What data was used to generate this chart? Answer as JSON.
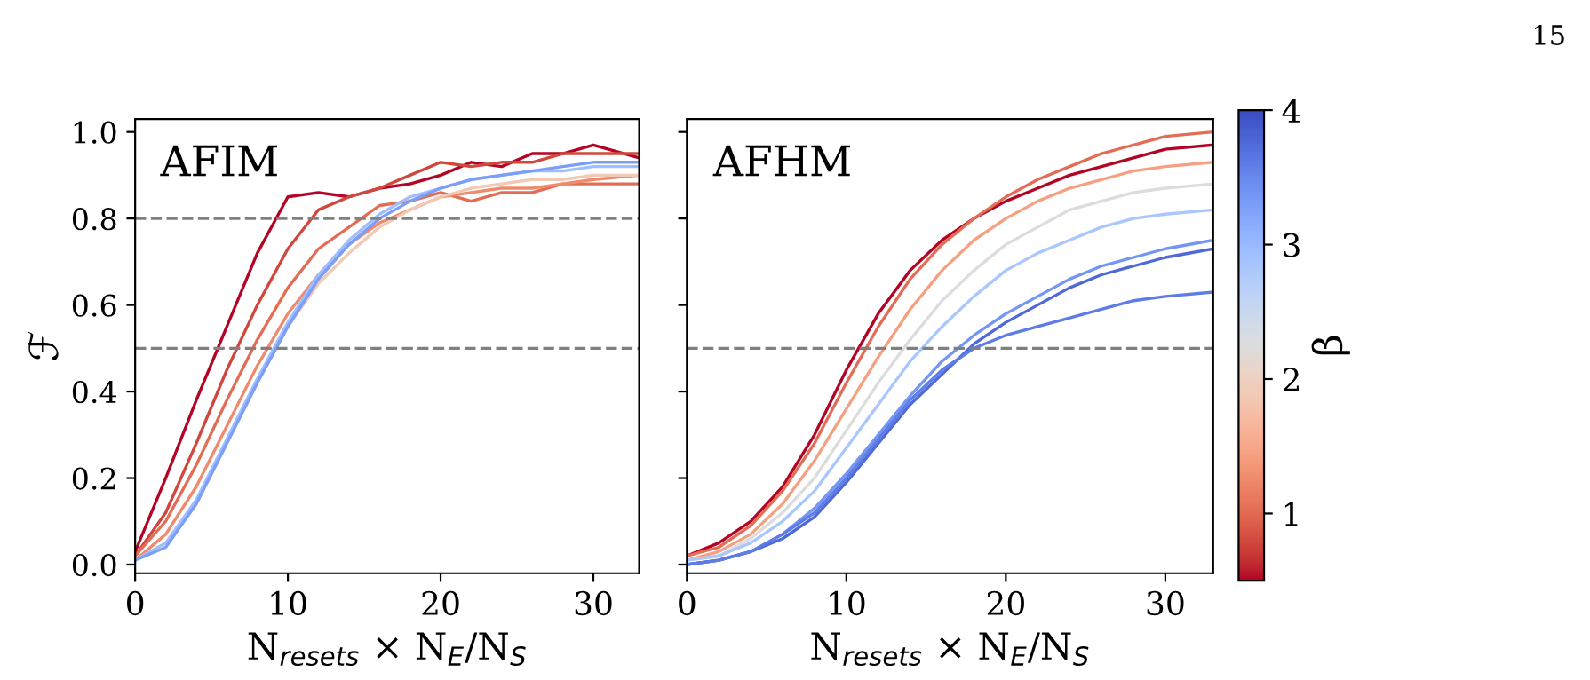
{
  "chart_data": [
    {
      "type": "line",
      "ylabel": "ℱ",
      "xlabel": "N$_{resets}$ × N$_{E}$/N$_{S}$",
      "annotations": [
        "AFIM"
      ],
      "x": [
        0,
        2,
        4,
        6,
        8,
        10,
        12,
        14,
        16,
        18,
        20,
        22,
        24,
        26,
        28,
        30,
        33
      ],
      "xlim": [
        0,
        33
      ],
      "xticks": [
        0,
        10,
        20,
        30
      ],
      "ylim": [
        -0.02,
        1.03
      ],
      "yticks": [
        {
          "value": 0,
          "label": "0.0"
        },
        0.2,
        0.4,
        0.6,
        0.8,
        {
          "value": 1,
          "label": "1.0"
        }
      ],
      "ref_lines": [
        {
          "axis": "y",
          "value": 0.8,
          "color": "#808080",
          "line_style": "dashed"
        },
        {
          "axis": "y",
          "value": 0.5,
          "color": "#808080",
          "line_style": "dashed"
        }
      ],
      "grid": false,
      "legend": false,
      "marker": "none",
      "line_style": "solid",
      "series": [
        {
          "color": "#b40426",
          "values": [
            0.03,
            0.2,
            0.38,
            0.55,
            0.72,
            0.85,
            0.86,
            0.85,
            0.87,
            0.88,
            0.9,
            0.93,
            0.92,
            0.95,
            0.95,
            0.97,
            0.94
          ]
        },
        {
          "color": "#d0473d",
          "values": [
            0.02,
            0.12,
            0.28,
            0.45,
            0.6,
            0.73,
            0.82,
            0.85,
            0.87,
            0.9,
            0.93,
            0.92,
            0.93,
            0.93,
            0.95,
            0.95,
            0.95
          ]
        },
        {
          "color": "#e36c55",
          "values": [
            0.02,
            0.1,
            0.23,
            0.38,
            0.52,
            0.64,
            0.73,
            0.78,
            0.83,
            0.84,
            0.86,
            0.84,
            0.86,
            0.86,
            0.88,
            0.88,
            0.88
          ]
        },
        {
          "color": "#f08a6c",
          "values": [
            0.01,
            0.07,
            0.18,
            0.32,
            0.46,
            0.58,
            0.67,
            0.74,
            0.79,
            0.82,
            0.85,
            0.86,
            0.87,
            0.87,
            0.88,
            0.89,
            0.9
          ]
        },
        {
          "color": "#f2c9b4",
          "values": [
            0.01,
            0.05,
            0.14,
            0.28,
            0.42,
            0.55,
            0.65,
            0.72,
            0.78,
            0.82,
            0.85,
            0.87,
            0.88,
            0.89,
            0.89,
            0.9,
            0.9
          ]
        },
        {
          "color": "#9ebeff",
          "values": [
            0.01,
            0.05,
            0.15,
            0.29,
            0.43,
            0.56,
            0.67,
            0.75,
            0.81,
            0.85,
            0.87,
            0.89,
            0.9,
            0.91,
            0.91,
            0.92,
            0.92
          ]
        },
        {
          "color": "#7b9ff9",
          "values": [
            0.01,
            0.04,
            0.14,
            0.28,
            0.42,
            0.55,
            0.66,
            0.74,
            0.8,
            0.84,
            0.87,
            0.89,
            0.9,
            0.91,
            0.92,
            0.93,
            0.93
          ]
        }
      ]
    },
    {
      "type": "line",
      "xlabel": "N$_{resets}$ × N$_{E}$/N$_{S}$",
      "annotations": [
        "AFHM",
        "15"
      ],
      "x": [
        0,
        2,
        4,
        6,
        8,
        10,
        12,
        14,
        16,
        18,
        20,
        22,
        24,
        26,
        28,
        30,
        33
      ],
      "xlim": [
        0,
        33
      ],
      "xticks": [
        0,
        10,
        20,
        30
      ],
      "ylim": [
        -0.02,
        1.03
      ],
      "yticks": [
        0,
        0.2,
        0.4,
        0.6,
        0.8,
        1
      ],
      "tick_labels": "x",
      "ref_lines": [
        {
          "axis": "y",
          "value": 0.5,
          "color": "#808080",
          "line_style": "dashed"
        }
      ],
      "grid": false,
      "legend": false,
      "marker": "none",
      "line_style": "solid",
      "clim": [
        0.5,
        4
      ],
      "cticks": [
        1,
        2,
        3,
        4
      ],
      "clabel": "β",
      "series": [
        {
          "color": "#b40426",
          "values": [
            0.02,
            0.05,
            0.1,
            0.18,
            0.3,
            0.45,
            0.58,
            0.68,
            0.75,
            0.8,
            0.84,
            0.87,
            0.9,
            0.92,
            0.94,
            0.96,
            0.97
          ]
        },
        {
          "color": "#e36c55",
          "values": [
            0.02,
            0.04,
            0.09,
            0.17,
            0.28,
            0.42,
            0.55,
            0.66,
            0.74,
            0.8,
            0.85,
            0.89,
            0.92,
            0.95,
            0.97,
            0.99,
            1.0
          ]
        },
        {
          "color": "#f5a081",
          "values": [
            0.01,
            0.03,
            0.07,
            0.14,
            0.24,
            0.36,
            0.48,
            0.59,
            0.68,
            0.75,
            0.8,
            0.84,
            0.87,
            0.89,
            0.91,
            0.92,
            0.93
          ]
        },
        {
          "color": "#dddcdc",
          "values": [
            0.01,
            0.02,
            0.06,
            0.12,
            0.2,
            0.31,
            0.42,
            0.52,
            0.61,
            0.68,
            0.74,
            0.78,
            0.82,
            0.84,
            0.86,
            0.87,
            0.88
          ]
        },
        {
          "color": "#aac7fd",
          "values": [
            0.01,
            0.02,
            0.05,
            0.1,
            0.17,
            0.27,
            0.37,
            0.47,
            0.55,
            0.62,
            0.68,
            0.72,
            0.75,
            0.78,
            0.8,
            0.81,
            0.82
          ]
        },
        {
          "color": "#7396f5",
          "values": [
            0.0,
            0.01,
            0.03,
            0.07,
            0.13,
            0.21,
            0.3,
            0.39,
            0.47,
            0.53,
            0.58,
            0.62,
            0.66,
            0.69,
            0.71,
            0.73,
            0.75
          ]
        },
        {
          "color": "#4f69d9",
          "values": [
            0.0,
            0.01,
            0.03,
            0.06,
            0.11,
            0.19,
            0.28,
            0.37,
            0.44,
            0.51,
            0.56,
            0.6,
            0.64,
            0.67,
            0.69,
            0.71,
            0.73
          ]
        },
        {
          "color": "#5d7ce6",
          "values": [
            0.0,
            0.01,
            0.03,
            0.07,
            0.12,
            0.2,
            0.29,
            0.38,
            0.45,
            0.5,
            0.53,
            0.55,
            0.57,
            0.59,
            0.61,
            0.62,
            0.63
          ]
        }
      ]
    }
  ]
}
